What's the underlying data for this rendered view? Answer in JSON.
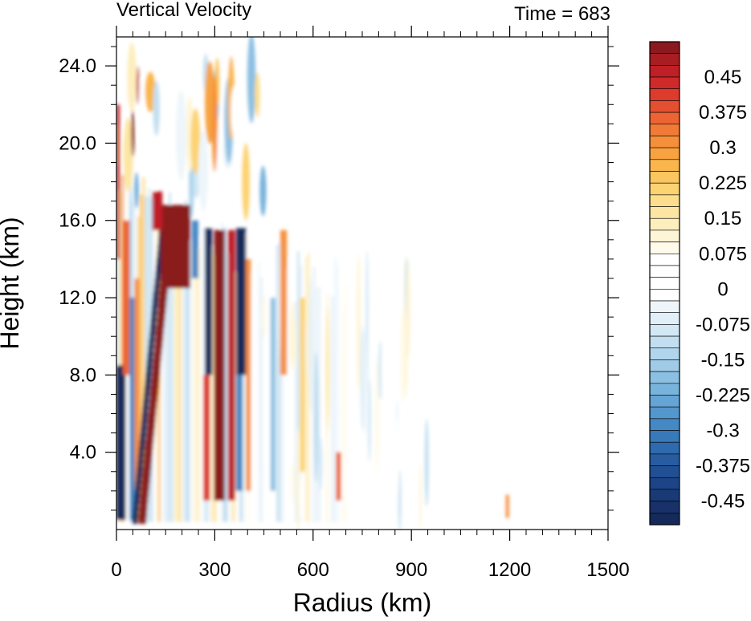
{
  "chart_data": {
    "type": "heatmap",
    "title": "Vertical Velocity",
    "subtitle": "Time = 683",
    "xlabel": "Radius (km)",
    "ylabel": "Height (km)",
    "xlim": [
      0,
      1500
    ],
    "ylim": [
      0,
      25.5
    ],
    "x_ticks": [
      0,
      300,
      600,
      900,
      1200,
      1500
    ],
    "x_tick_labels": [
      "0",
      "300",
      "600",
      "900",
      "1200",
      "1500"
    ],
    "y_ticks": [
      4,
      8,
      12,
      16,
      20,
      24
    ],
    "y_tick_labels": [
      "4.0",
      "8.0",
      "12.0",
      "16.0",
      "20.0",
      "24.0"
    ],
    "colorbar": {
      "levels_top_to_bottom": [
        0.5,
        0.475,
        0.45,
        0.425,
        0.4,
        0.375,
        0.35,
        0.325,
        0.3,
        0.275,
        0.25,
        0.225,
        0.2,
        0.175,
        0.15,
        0.125,
        0.1,
        0.075,
        0.05,
        0.025,
        0,
        -0.025,
        -0.05,
        -0.075,
        -0.1,
        -0.125,
        -0.15,
        -0.175,
        -0.2,
        -0.225,
        -0.25,
        -0.275,
        -0.3,
        -0.325,
        -0.35,
        -0.375,
        -0.4,
        -0.425,
        -0.45,
        -0.475,
        -0.5
      ],
      "labels": [
        "0.45",
        "0.375",
        "0.3",
        "0.225",
        "0.15",
        "0.075",
        "0",
        "-0.075",
        "-0.15",
        "-0.225",
        "-0.3",
        "-0.375",
        "-0.45"
      ],
      "label_values": [
        0.45,
        0.375,
        0.3,
        0.225,
        0.15,
        0.075,
        0,
        -0.075,
        -0.15,
        -0.225,
        -0.3,
        -0.375,
        -0.45
      ],
      "colors_top_to_bottom": [
        "#8a1a1f",
        "#a71d22",
        "#bf1f26",
        "#cf2a2a",
        "#dd3b2c",
        "#e44e31",
        "#ec6433",
        "#f17a36",
        "#f58f3a",
        "#f8a33f",
        "#fab64c",
        "#fbc55f",
        "#fcd373",
        "#fcde8c",
        "#fde6a4",
        "#fdeebe",
        "#fef5d6",
        "#fffaea",
        "#ffffff",
        "#ffffff",
        "#ffffff",
        "#ffffff",
        "#eef6fb",
        "#e1eff8",
        "#d2e8f4",
        "#c2dff0",
        "#b1d5ec",
        "#9fcbe7",
        "#8cc0e2",
        "#78b3dc",
        "#65a5d5",
        "#5497cd",
        "#4488c4",
        "#3879b9",
        "#2e6aad",
        "#275ca1",
        "#204f94",
        "#1c4486",
        "#1a3a77",
        "#183168",
        "#15295a"
      ]
    },
    "description_of_field": [
      {
        "r": [
          0,
          30
        ],
        "z": [
          0.5,
          7
        ],
        "value": -0.5
      },
      {
        "r": [
          70,
          120
        ],
        "z": [
          0.2,
          16
        ],
        "value": 0.5
      },
      {
        "r": [
          120,
          230
        ],
        "z": [
          12,
          17
        ],
        "value": 0.5
      },
      {
        "r": [
          90,
          150
        ],
        "z": [
          2,
          15
        ],
        "value": -0.45
      },
      {
        "r": [
          270,
          290
        ],
        "z": [
          8,
          15.5
        ],
        "value": -0.5
      },
      {
        "r": [
          300,
          330
        ],
        "z": [
          1.5,
          15.5
        ],
        "value": 0.5
      },
      {
        "r": [
          365,
          395
        ],
        "z": [
          8,
          15.5
        ],
        "value": -0.5
      },
      {
        "r": [
          340,
          360
        ],
        "z": [
          1.5,
          15.5
        ],
        "value": 0.45
      },
      {
        "r": [
          500,
          520
        ],
        "z": [
          8,
          15.5
        ],
        "value": 0.3
      },
      {
        "r": [
          1185,
          1200
        ],
        "z": [
          0.5,
          2
        ],
        "value": 0.3
      }
    ]
  }
}
